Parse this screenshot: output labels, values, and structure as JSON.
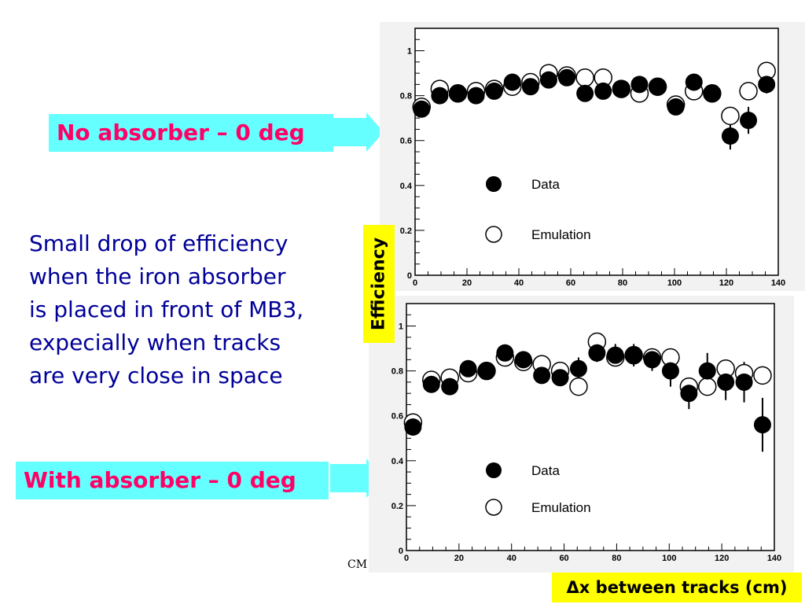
{
  "callouts": {
    "top": "No absorber – 0 deg",
    "bottom": "With absorber – 0 deg"
  },
  "body_text": "Small drop of efficiency\nwhen the iron absorber\nis placed in front of MB3,\nexpecially when tracks\nare very close in space",
  "ylabel": "Efficiency",
  "xlabel": "Δx between tracks (cm)",
  "footer": "CM",
  "colors": {
    "callout_bg": "#66ffff",
    "callout_text": "#ff0066",
    "body_text": "#000099",
    "label_bg": "#ffff00"
  },
  "chart_data": [
    {
      "type": "scatter",
      "title": "",
      "xlim": [
        0,
        140
      ],
      "ylim": [
        0,
        1.1
      ],
      "xticks": [
        0,
        20,
        40,
        60,
        80,
        100,
        120,
        140
      ],
      "yticks": [
        0,
        0.2,
        0.4,
        0.6,
        0.8,
        1
      ],
      "ytick_labels": [
        "0",
        "0.2",
        "0.4",
        "0.6",
        "0.8",
        "1"
      ],
      "legend": [
        "Data",
        "Emulation"
      ],
      "series": [
        {
          "name": "Emulation",
          "marker": "open-circle",
          "points": [
            [
              2.5,
              0.75
            ],
            [
              9.5,
              0.83
            ],
            [
              16.5,
              0.81
            ],
            [
              23.5,
              0.82
            ],
            [
              30.5,
              0.83
            ],
            [
              37.5,
              0.84
            ],
            [
              44.5,
              0.86
            ],
            [
              51.5,
              0.9
            ],
            [
              58.5,
              0.89
            ],
            [
              65.5,
              0.88
            ],
            [
              72.5,
              0.88
            ],
            [
              79.5,
              0.83
            ],
            [
              86.5,
              0.81
            ],
            [
              93.5,
              0.84
            ],
            [
              100.5,
              0.76
            ],
            [
              107.5,
              0.82
            ],
            [
              114.5,
              0.81
            ],
            [
              121.5,
              0.71
            ],
            [
              128.5,
              0.82
            ],
            [
              135.5,
              0.91
            ]
          ]
        },
        {
          "name": "Data",
          "marker": "filled-circle",
          "points": [
            [
              2.5,
              0.74
            ],
            [
              9.5,
              0.8
            ],
            [
              16.5,
              0.81
            ],
            [
              23.5,
              0.8
            ],
            [
              30.5,
              0.82
            ],
            [
              37.5,
              0.86
            ],
            [
              44.5,
              0.84
            ],
            [
              51.5,
              0.87
            ],
            [
              58.5,
              0.88
            ],
            [
              65.5,
              0.81
            ],
            [
              72.5,
              0.82
            ],
            [
              79.5,
              0.83
            ],
            [
              86.5,
              0.85
            ],
            [
              93.5,
              0.84
            ],
            [
              100.5,
              0.75
            ],
            [
              107.5,
              0.86
            ],
            [
              114.5,
              0.81
            ],
            [
              121.5,
              0.62
            ],
            [
              128.5,
              0.69
            ],
            [
              135.5,
              0.85
            ]
          ],
          "errors": [
            0.03,
            0.03,
            0.02,
            0.02,
            0.02,
            0.02,
            0.02,
            0.02,
            0.02,
            0.03,
            0.02,
            0.02,
            0.03,
            0.03,
            0.03,
            0.03,
            0.03,
            0.06,
            0.06,
            0.04
          ]
        }
      ]
    },
    {
      "type": "scatter",
      "title": "",
      "xlim": [
        0,
        140
      ],
      "ylim": [
        0,
        1.1
      ],
      "xticks": [
        0,
        20,
        40,
        60,
        80,
        100,
        120,
        140
      ],
      "yticks": [
        0,
        0.2,
        0.4,
        0.6,
        0.8,
        1
      ],
      "ytick_labels": [
        "0",
        "0.2",
        "0.4",
        "0.6",
        "0.8",
        "1"
      ],
      "legend": [
        "Data",
        "Emulation"
      ],
      "series": [
        {
          "name": "Emulation",
          "marker": "open-circle",
          "points": [
            [
              2.5,
              0.57
            ],
            [
              9.5,
              0.76
            ],
            [
              16.5,
              0.77
            ],
            [
              23.5,
              0.79
            ],
            [
              30.5,
              0.8
            ],
            [
              37.5,
              0.86
            ],
            [
              44.5,
              0.84
            ],
            [
              51.5,
              0.83
            ],
            [
              58.5,
              0.8
            ],
            [
              65.5,
              0.73
            ],
            [
              72.5,
              0.93
            ],
            [
              79.5,
              0.86
            ],
            [
              86.5,
              0.87
            ],
            [
              93.5,
              0.86
            ],
            [
              100.5,
              0.86
            ],
            [
              107.5,
              0.73
            ],
            [
              114.5,
              0.73
            ],
            [
              121.5,
              0.81
            ],
            [
              128.5,
              0.79
            ],
            [
              135.5,
              0.78
            ]
          ]
        },
        {
          "name": "Data",
          "marker": "filled-circle",
          "points": [
            [
              2.5,
              0.55
            ],
            [
              9.5,
              0.74
            ],
            [
              16.5,
              0.73
            ],
            [
              23.5,
              0.81
            ],
            [
              30.5,
              0.8
            ],
            [
              37.5,
              0.88
            ],
            [
              44.5,
              0.85
            ],
            [
              51.5,
              0.78
            ],
            [
              58.5,
              0.77
            ],
            [
              65.5,
              0.81
            ],
            [
              72.5,
              0.88
            ],
            [
              79.5,
              0.87
            ],
            [
              86.5,
              0.87
            ],
            [
              93.5,
              0.85
            ],
            [
              100.5,
              0.8
            ],
            [
              107.5,
              0.7
            ],
            [
              114.5,
              0.8
            ],
            [
              121.5,
              0.75
            ],
            [
              128.5,
              0.75
            ],
            [
              135.5,
              0.56
            ]
          ],
          "errors": [
            0.02,
            0.03,
            0.03,
            0.03,
            0.03,
            0.02,
            0.03,
            0.03,
            0.03,
            0.05,
            0.04,
            0.05,
            0.05,
            0.05,
            0.07,
            0.07,
            0.08,
            0.08,
            0.09,
            0.12
          ]
        }
      ]
    }
  ]
}
